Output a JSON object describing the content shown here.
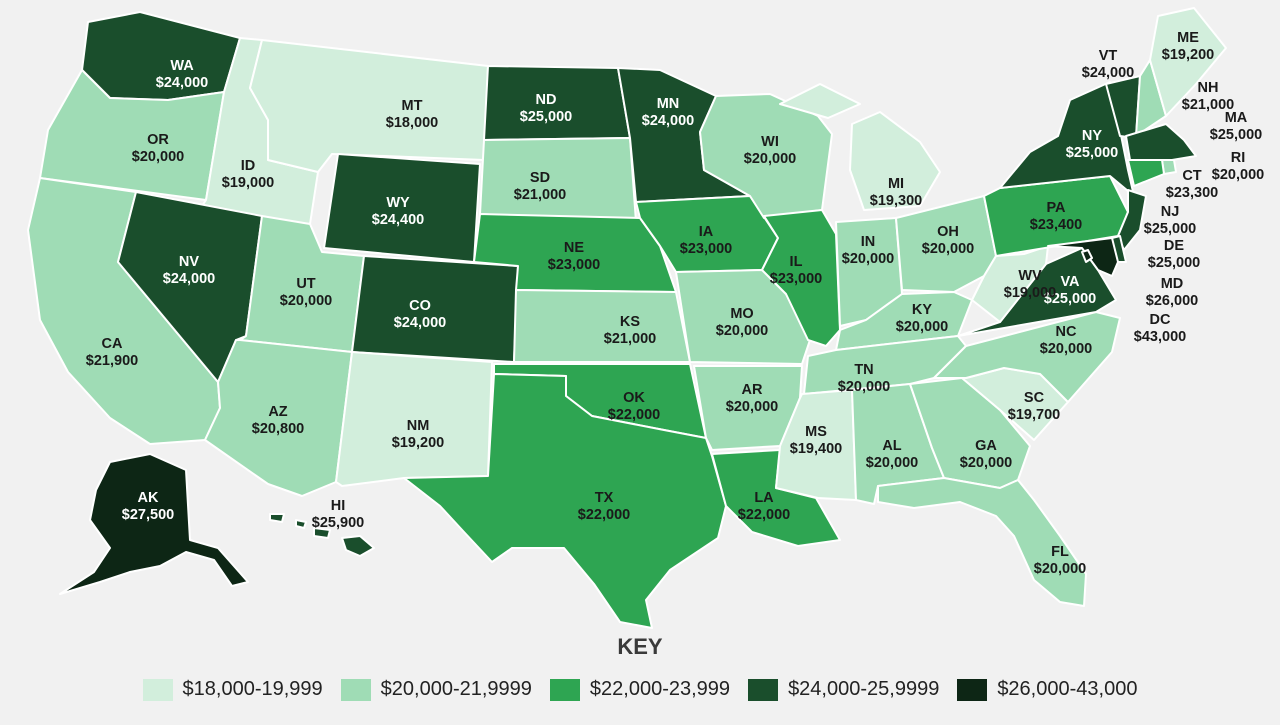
{
  "key_title": "KEY",
  "colors": {
    "bin1": "#d2eedc",
    "bin2": "#9fdcb5",
    "bin3": "#2ea552",
    "bin4": "#1a4e2c",
    "bin5": "#0d2615",
    "label_light": "#1a1a1a",
    "label_dark": "#ffffff"
  },
  "legend": [
    {
      "label": "$18,000-19,999",
      "color": "#d2eedc"
    },
    {
      "label": "$20,000-21,9999",
      "color": "#9fdcb5"
    },
    {
      "label": "$22,000-23,999",
      "color": "#2ea552"
    },
    {
      "label": "$24,000-25,9999",
      "color": "#1a4e2c"
    },
    {
      "label": "$26,000-43,000",
      "color": "#0d2615"
    }
  ],
  "states": [
    {
      "abbr": "WA",
      "value": "$24,000",
      "bin": 4
    },
    {
      "abbr": "OR",
      "value": "$20,000",
      "bin": 2
    },
    {
      "abbr": "CA",
      "value": "$21,900",
      "bin": 2
    },
    {
      "abbr": "ID",
      "value": "$19,000",
      "bin": 1
    },
    {
      "abbr": "NV",
      "value": "$24,000",
      "bin": 4
    },
    {
      "abbr": "MT",
      "value": "$18,000",
      "bin": 1
    },
    {
      "abbr": "WY",
      "value": "$24,400",
      "bin": 4
    },
    {
      "abbr": "UT",
      "value": "$20,000",
      "bin": 2
    },
    {
      "abbr": "AZ",
      "value": "$20,800",
      "bin": 2
    },
    {
      "abbr": "CO",
      "value": "$24,000",
      "bin": 4
    },
    {
      "abbr": "NM",
      "value": "$19,200",
      "bin": 1
    },
    {
      "abbr": "ND",
      "value": "$25,000",
      "bin": 4
    },
    {
      "abbr": "SD",
      "value": "$21,000",
      "bin": 2
    },
    {
      "abbr": "NE",
      "value": "$23,000",
      "bin": 3
    },
    {
      "abbr": "KS",
      "value": "$21,000",
      "bin": 2
    },
    {
      "abbr": "OK",
      "value": "$22,000",
      "bin": 3
    },
    {
      "abbr": "TX",
      "value": "$22,000",
      "bin": 3
    },
    {
      "abbr": "MN",
      "value": "$24,000",
      "bin": 4
    },
    {
      "abbr": "IA",
      "value": "$23,000",
      "bin": 3
    },
    {
      "abbr": "MO",
      "value": "$20,000",
      "bin": 2
    },
    {
      "abbr": "AR",
      "value": "$20,000",
      "bin": 2
    },
    {
      "abbr": "LA",
      "value": "$22,000",
      "bin": 3
    },
    {
      "abbr": "WI",
      "value": "$20,000",
      "bin": 2
    },
    {
      "abbr": "IL",
      "value": "$23,000",
      "bin": 3
    },
    {
      "abbr": "MI",
      "value": "$19,300",
      "bin": 1
    },
    {
      "abbr": "IN",
      "value": "$20,000",
      "bin": 2
    },
    {
      "abbr": "OH",
      "value": "$20,000",
      "bin": 2
    },
    {
      "abbr": "KY",
      "value": "$20,000",
      "bin": 2
    },
    {
      "abbr": "TN",
      "value": "$20,000",
      "bin": 2
    },
    {
      "abbr": "MS",
      "value": "$19,400",
      "bin": 1
    },
    {
      "abbr": "AL",
      "value": "$20,000",
      "bin": 2
    },
    {
      "abbr": "GA",
      "value": "$20,000",
      "bin": 2
    },
    {
      "abbr": "FL",
      "value": "$20,000",
      "bin": 2
    },
    {
      "abbr": "SC",
      "value": "$19,700",
      "bin": 1
    },
    {
      "abbr": "NC",
      "value": "$20,000",
      "bin": 2
    },
    {
      "abbr": "VA",
      "value": "$25,000",
      "bin": 4
    },
    {
      "abbr": "WV",
      "value": "$19,000",
      "bin": 1
    },
    {
      "abbr": "PA",
      "value": "$23,400",
      "bin": 3
    },
    {
      "abbr": "NY",
      "value": "$25,000",
      "bin": 4
    },
    {
      "abbr": "VT",
      "value": "$24,000",
      "bin": 4
    },
    {
      "abbr": "NH",
      "value": "$21,000",
      "bin": 2
    },
    {
      "abbr": "ME",
      "value": "$19,200",
      "bin": 1
    },
    {
      "abbr": "MA",
      "value": "$25,000",
      "bin": 4
    },
    {
      "abbr": "RI",
      "value": "$20,000",
      "bin": 2
    },
    {
      "abbr": "CT",
      "value": "$23,300",
      "bin": 3
    },
    {
      "abbr": "NJ",
      "value": "$25,000",
      "bin": 4
    },
    {
      "abbr": "DE",
      "value": "$25,000",
      "bin": 4
    },
    {
      "abbr": "MD",
      "value": "$26,000",
      "bin": 5
    },
    {
      "abbr": "DC",
      "value": "$43,000",
      "bin": 5
    },
    {
      "abbr": "AK",
      "value": "$27,500",
      "bin": 5
    },
    {
      "abbr": "HI",
      "value": "$25,900",
      "bin": 4
    }
  ]
}
